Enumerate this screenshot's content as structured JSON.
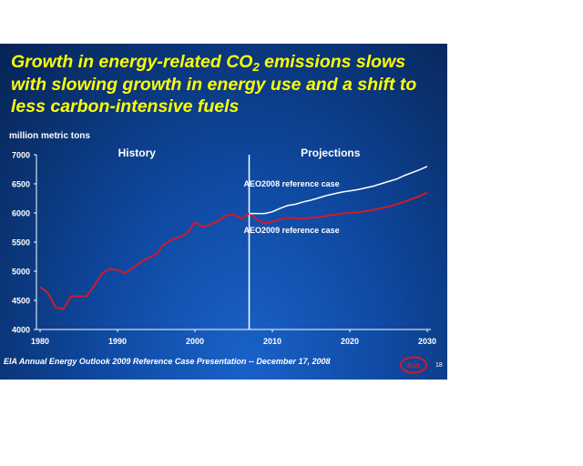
{
  "slide": {
    "title_pre": "Growth in energy-related CO",
    "title_sub": "2",
    "title_post": " emissions slows with slowing growth in energy use and a shift to less carbon-intensive fuels",
    "footer": "EIA Annual Energy Outlook 2009 Reference Case Presentation -- December 17, 2008",
    "page_number": "18",
    "logo_text": "eia",
    "colors": {
      "background": "#0d3f8f",
      "title": "#ffff00",
      "aeo2009": "#d01a2a",
      "aeo2008": "#ffffff"
    }
  },
  "chart_data": {
    "type": "line",
    "ylabel": "million metric tons",
    "ylim": [
      4000,
      7000
    ],
    "xlim": [
      1980,
      2030
    ],
    "yticks": [
      "4000",
      "4500",
      "5000",
      "5500",
      "6000",
      "6500",
      "7000"
    ],
    "xticks": [
      "1980",
      "1990",
      "2000",
      "2010",
      "2020",
      "2030"
    ],
    "divider_year": 2007,
    "region_labels": [
      "History",
      "Projections"
    ],
    "series": [
      {
        "name": "AEO2009 reference case",
        "color": "#d01a2a",
        "x": [
          1980,
          1981,
          1982,
          1983,
          1984,
          1985,
          1986,
          1987,
          1988,
          1989,
          1990,
          1991,
          1992,
          1993,
          1994,
          1995,
          1996,
          1997,
          1998,
          1999,
          2000,
          2001,
          2002,
          2003,
          2004,
          2005,
          2006,
          2007,
          2008,
          2009,
          2010,
          2011,
          2012,
          2013,
          2014,
          2015,
          2016,
          2017,
          2018,
          2019,
          2020,
          2021,
          2022,
          2023,
          2024,
          2025,
          2026,
          2027,
          2028,
          2029,
          2030
        ],
        "values": [
          4730,
          4630,
          4380,
          4350,
          4570,
          4570,
          4570,
          4750,
          4960,
          5040,
          5020,
          4970,
          5060,
          5160,
          5230,
          5290,
          5460,
          5540,
          5590,
          5650,
          5840,
          5760,
          5810,
          5860,
          5960,
          5980,
          5900,
          5990,
          5890,
          5820,
          5850,
          5890,
          5920,
          5910,
          5900,
          5920,
          5930,
          5950,
          5970,
          5990,
          6000,
          6010,
          6030,
          6050,
          6080,
          6110,
          6150,
          6190,
          6240,
          6290,
          6350
        ]
      },
      {
        "name": "AEO2008 reference case",
        "color": "#ffffff",
        "x": [
          2007,
          2008,
          2009,
          2010,
          2011,
          2012,
          2013,
          2014,
          2015,
          2016,
          2017,
          2018,
          2019,
          2020,
          2021,
          2022,
          2023,
          2024,
          2025,
          2026,
          2027,
          2028,
          2029,
          2030
        ],
        "values": [
          5990,
          5990,
          5990,
          6020,
          6080,
          6130,
          6150,
          6190,
          6220,
          6260,
          6300,
          6330,
          6360,
          6380,
          6400,
          6430,
          6460,
          6500,
          6540,
          6580,
          6640,
          6690,
          6740,
          6800
        ]
      }
    ]
  }
}
